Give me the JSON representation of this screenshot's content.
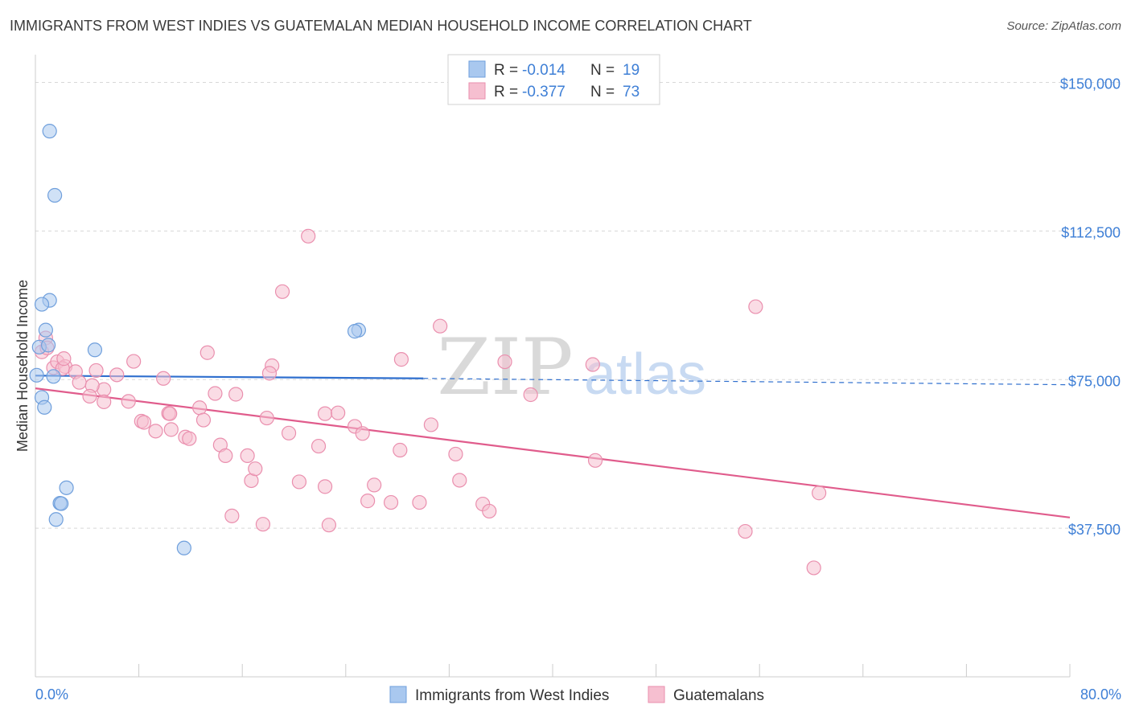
{
  "title": "IMMIGRANTS FROM WEST INDIES VS GUATEMALAN MEDIAN HOUSEHOLD INCOME CORRELATION CHART",
  "source": "Source: ZipAtlas.com",
  "watermark": {
    "zip": "ZIP",
    "atlas": "atlas"
  },
  "colors": {
    "blue_fill": "#a9c8ef",
    "blue_stroke": "#6f9fdc",
    "blue_line": "#2f6fce",
    "pink_fill": "#f6bfd0",
    "pink_stroke": "#ea8fae",
    "pink_line": "#e05c8c",
    "tick": "#3e7fd6",
    "grid": "#d8d8d8"
  },
  "legend": {
    "r_label": "R =",
    "n_label": "N =",
    "rows": [
      {
        "r": "-0.014",
        "n": "19"
      },
      {
        "r": "-0.377",
        "n": "73"
      }
    ]
  },
  "chart_data": {
    "type": "scatter",
    "title": "IMMIGRANTS FROM WEST INDIES VS GUATEMALAN MEDIAN HOUSEHOLD INCOME CORRELATION CHART",
    "xlabel": "",
    "ylabel": "Median Household Income",
    "xlim": [
      0,
      80
    ],
    "ylim": [
      0,
      157000
    ],
    "x_tick_labels": [
      "0.0%",
      "80.0%"
    ],
    "y_ticks": [
      {
        "value": 37500,
        "label": "$37,500"
      },
      {
        "value": 75000,
        "label": "$75,000"
      },
      {
        "value": 112500,
        "label": "$112,500"
      },
      {
        "value": 150000,
        "label": "$150,000"
      }
    ],
    "series": [
      {
        "name": "Immigrants from West Indies",
        "color": "blue",
        "r": -0.014,
        "n": 19,
        "trend": {
          "x0": 0,
          "y0": 76000,
          "x1": 30,
          "y1": 75300,
          "x_dash_end": 80,
          "y_dash_end": 73700
        },
        "points": [
          [
            1.1,
            137700
          ],
          [
            1.5,
            121500
          ],
          [
            1.1,
            95000
          ],
          [
            0.5,
            94000
          ],
          [
            0.8,
            87500
          ],
          [
            0.3,
            83200
          ],
          [
            1.0,
            83700
          ],
          [
            4.6,
            82500
          ],
          [
            0.1,
            76100
          ],
          [
            1.4,
            75800
          ],
          [
            0.5,
            70500
          ],
          [
            0.7,
            68000
          ],
          [
            2.4,
            47700
          ],
          [
            1.9,
            43800
          ],
          [
            2.0,
            43700
          ],
          [
            1.6,
            39700
          ],
          [
            11.5,
            32500
          ],
          [
            25.0,
            87500
          ],
          [
            24.7,
            87200
          ]
        ]
      },
      {
        "name": "Guatemalans",
        "color": "pink",
        "r": -0.377,
        "n": 73,
        "trend": {
          "x0": 0,
          "y0": 72800,
          "x1": 80,
          "y1": 40200
        },
        "points": [
          [
            0.8,
            85500
          ],
          [
            0.5,
            82000
          ],
          [
            0.9,
            83000
          ],
          [
            1.4,
            78000
          ],
          [
            1.7,
            79500
          ],
          [
            2.3,
            78300
          ],
          [
            2.1,
            77800
          ],
          [
            3.1,
            77000
          ],
          [
            4.7,
            77300
          ],
          [
            6.3,
            76200
          ],
          [
            2.2,
            80300
          ],
          [
            3.4,
            74300
          ],
          [
            5.3,
            72500
          ],
          [
            4.4,
            73500
          ],
          [
            4.2,
            70800
          ],
          [
            5.3,
            69400
          ],
          [
            7.2,
            69500
          ],
          [
            7.6,
            79600
          ],
          [
            9.9,
            75300
          ],
          [
            13.3,
            81800
          ],
          [
            13.9,
            71500
          ],
          [
            15.5,
            71300
          ],
          [
            18.3,
            78500
          ],
          [
            18.1,
            76600
          ],
          [
            8.2,
            64500
          ],
          [
            8.4,
            64200
          ],
          [
            9.3,
            62000
          ],
          [
            10.3,
            66500
          ],
          [
            10.4,
            66400
          ],
          [
            10.5,
            62400
          ],
          [
            11.6,
            60500
          ],
          [
            11.9,
            60100
          ],
          [
            12.7,
            67900
          ],
          [
            13.0,
            64800
          ],
          [
            14.3,
            58500
          ],
          [
            14.7,
            55800
          ],
          [
            16.4,
            55800
          ],
          [
            16.7,
            49500
          ],
          [
            17.0,
            52500
          ],
          [
            17.9,
            65300
          ],
          [
            19.6,
            61500
          ],
          [
            20.4,
            49200
          ],
          [
            21.9,
            58200
          ],
          [
            22.4,
            66400
          ],
          [
            23.4,
            66600
          ],
          [
            22.4,
            48000
          ],
          [
            24.7,
            63200
          ],
          [
            25.3,
            61400
          ],
          [
            25.7,
            44400
          ],
          [
            26.2,
            48400
          ],
          [
            27.5,
            44000
          ],
          [
            28.2,
            57200
          ],
          [
            28.3,
            80100
          ],
          [
            29.7,
            44000
          ],
          [
            30.6,
            63600
          ],
          [
            31.3,
            88500
          ],
          [
            32.5,
            56200
          ],
          [
            32.8,
            49600
          ],
          [
            34.6,
            43600
          ],
          [
            35.1,
            41800
          ],
          [
            36.3,
            79500
          ],
          [
            38.3,
            71200
          ],
          [
            43.1,
            78800
          ],
          [
            43.3,
            54600
          ],
          [
            19.1,
            97200
          ],
          [
            21.1,
            111200
          ],
          [
            15.2,
            40600
          ],
          [
            17.6,
            38500
          ],
          [
            22.7,
            38300
          ],
          [
            54.9,
            36700
          ],
          [
            55.7,
            93400
          ],
          [
            60.6,
            46400
          ],
          [
            60.2,
            27500
          ]
        ]
      }
    ]
  },
  "bottom_legend": [
    {
      "label": "Immigrants from West Indies",
      "color": "blue"
    },
    {
      "label": "Guatemalans",
      "color": "pink"
    }
  ]
}
